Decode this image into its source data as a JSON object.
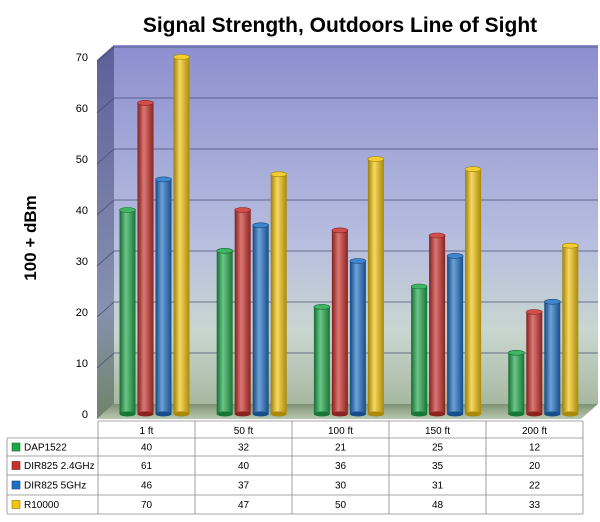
{
  "chart_data": {
    "type": "bar",
    "title": "Signal Strength, Outdoors Line of Sight",
    "ylabel": "100 + dBm",
    "xlabel": "",
    "ylim": [
      0,
      70
    ],
    "yticks": [
      0,
      10,
      20,
      30,
      40,
      50,
      60,
      70
    ],
    "grid": true,
    "legend": "data-table",
    "categories": [
      "1 ft",
      "50 ft",
      "100 ft",
      "150 ft",
      "200 ft"
    ],
    "series": [
      {
        "name": "DAP1522",
        "color": "#1fa84a",
        "values": [
          40,
          32,
          21,
          25,
          12
        ]
      },
      {
        "name": "DIR825 2.4GHz",
        "color": "#c8302b",
        "values": [
          61,
          40,
          36,
          35,
          20
        ]
      },
      {
        "name": "DIR825 5GHz",
        "color": "#1f6fc4",
        "values": [
          46,
          37,
          30,
          31,
          22
        ]
      },
      {
        "name": "R10000",
        "color": "#f2c40c",
        "values": [
          70,
          47,
          50,
          48,
          33
        ]
      }
    ]
  }
}
